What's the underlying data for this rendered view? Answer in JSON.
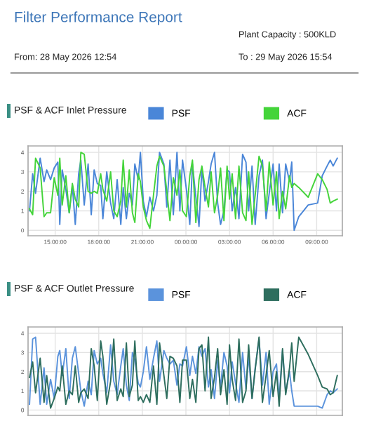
{
  "chart_data": [
    {
      "type": "line",
      "title": "Filter Performance Report",
      "annotations": [
        "Plant Capacity : 500KLD",
        "From: 28 May 2026 12:54",
        "To : 29 May 2026 15:54"
      ],
      "legend_title": "PSF & ACF Inlet Pressure",
      "legend": "top",
      "grid": true,
      "marker": "none",
      "line_style": "solid",
      "xlim": [
        "2026-05-28T13:08",
        "2026-05-29T10:46"
      ],
      "ylim": [
        -0.28,
        4.33
      ],
      "yticks": [
        0,
        1,
        2,
        3,
        4
      ],
      "xticks": [
        {
          "value": "2026-05-28T15:00",
          "label": "15:00:00"
        },
        {
          "value": "2026-05-28T18:00",
          "label": "18:00:00"
        },
        {
          "value": "2026-05-28T21:00",
          "label": "21:00:00"
        },
        {
          "value": "2026-05-29T00:00",
          "label": "00:00:00"
        },
        {
          "value": "2026-05-29T03:00",
          "label": "03:00:00"
        },
        {
          "value": "2026-05-29T06:00",
          "label": "06:00:00"
        },
        {
          "value": "2026-05-29T09:00",
          "label": "09:00:00"
        }
      ],
      "x": [
        "2026-05-28T13:14",
        "2026-05-28T13:27",
        "2026-05-28T13:39",
        "2026-05-28T13:58",
        "2026-05-28T14:14",
        "2026-05-28T14:25",
        "2026-05-28T14:41",
        "2026-05-28T14:56",
        "2026-05-28T15:11",
        "2026-05-28T15:19",
        "2026-05-28T15:29",
        "2026-05-28T15:44",
        "2026-05-28T15:58",
        "2026-05-28T16:11",
        "2026-05-28T16:23",
        "2026-05-28T16:37",
        "2026-05-28T16:46",
        "2026-05-28T17:00",
        "2026-05-28T17:16",
        "2026-05-28T17:29",
        "2026-05-28T17:41",
        "2026-05-28T17:54",
        "2026-05-28T18:08",
        "2026-05-28T18:17",
        "2026-05-28T18:33",
        "2026-05-28T18:49",
        "2026-05-28T19:02",
        "2026-05-28T19:16",
        "2026-05-28T19:31",
        "2026-05-28T19:41",
        "2026-05-28T19:54",
        "2026-05-28T20:06",
        "2026-05-28T20:19",
        "2026-05-28T20:29",
        "2026-05-28T20:43",
        "2026-05-28T20:52",
        "2026-05-28T21:04",
        "2026-05-28T21:17",
        "2026-05-28T21:31",
        "2026-05-28T21:46",
        "2026-05-28T22:00",
        "2026-05-28T22:11",
        "2026-05-28T22:29",
        "2026-05-28T22:41",
        "2026-05-28T22:54",
        "2026-05-28T23:08",
        "2026-05-28T23:23",
        "2026-05-28T23:35",
        "2026-05-28T23:46",
        "2026-05-29T00:02",
        "2026-05-29T00:16",
        "2026-05-29T00:27",
        "2026-05-29T00:41",
        "2026-05-29T00:54",
        "2026-05-29T01:06",
        "2026-05-29T01:19",
        "2026-05-29T01:33",
        "2026-05-29T01:44",
        "2026-05-29T01:58",
        "2026-05-29T02:11",
        "2026-05-29T02:23",
        "2026-05-29T02:37",
        "2026-05-29T02:50",
        "2026-05-29T03:00",
        "2026-05-29T03:11",
        "2026-05-29T03:25",
        "2026-05-29T03:39",
        "2026-05-29T03:54",
        "2026-05-29T04:08",
        "2026-05-29T04:19",
        "2026-05-29T04:33",
        "2026-05-29T04:46",
        "2026-05-29T05:02",
        "2026-05-29T05:16",
        "2026-05-29T05:31",
        "2026-05-29T05:44",
        "2026-05-29T06:00",
        "2026-05-29T06:14",
        "2026-05-29T06:25",
        "2026-05-29T06:39",
        "2026-05-29T06:52",
        "2026-05-29T07:08",
        "2026-05-29T07:17",
        "2026-05-29T07:27",
        "2026-05-29T07:46",
        "2026-05-29T08:25",
        "2026-05-29T09:04",
        "2026-05-29T09:23",
        "2026-05-29T09:43",
        "2026-05-29T09:56",
        "2026-05-29T10:08",
        "2026-05-29T10:25"
      ],
      "series": [
        {
          "name": "PSF",
          "color": "#4a86d8",
          "values": [
            1.0,
            2.9,
            1.9,
            3.7,
            2.5,
            3.1,
            2.6,
            3.2,
            3.5,
            0.3,
            3.1,
            2.1,
            0.9,
            2.3,
            0.3,
            2.9,
            3.6,
            1.3,
            3.4,
            0.8,
            3.1,
            2.4,
            2.3,
            0.6,
            3.0,
            1.4,
            0.6,
            2.6,
            0.3,
            2.2,
            0.6,
            1.9,
            1.3,
            3.4,
            2.6,
            4.0,
            1.5,
            0.7,
            1.7,
            1.0,
            1.8,
            4.0,
            3.4,
            1.2,
            3.6,
            0.8,
            4.0,
            1.0,
            3.6,
            2.1,
            0.3,
            3.4,
            1.7,
            0.2,
            3.2,
            1.5,
            2.5,
            3.4,
            4.0,
            1.4,
            0.3,
            1.0,
            3.1,
            3.0,
            1.0,
            2.2,
            0.6,
            3.9,
            3.5,
            1.0,
            3.3,
            0.3,
            2.8,
            3.6,
            0.6,
            1.9,
            3.4,
            1.0,
            3.4,
            0.9,
            3.4,
            2.5,
            3.5,
            0.0,
            0.7,
            1.3,
            1.4,
            2.8,
            3.3,
            3.6,
            3.3,
            3.7
          ]
        },
        {
          "name": "ACF",
          "color": "#44d43a",
          "values": [
            1.1,
            0.8,
            3.7,
            3.2,
            0.7,
            0.9,
            0.9,
            2.7,
            1.8,
            3.7,
            1.3,
            2.8,
            0.9,
            2.4,
            1.6,
            1.2,
            4.0,
            3.9,
            2.0,
            1.9,
            2.0,
            1.9,
            2.9,
            2.1,
            1.5,
            3.0,
            1.0,
            0.7,
            1.5,
            3.6,
            1.2,
            3.1,
            0.9,
            0.4,
            2.9,
            2.5,
            1.2,
            0.5,
            0.1,
            1.8,
            3.3,
            3.8,
            3.3,
            2.0,
            0.5,
            2.7,
            1.8,
            3.1,
            1.0,
            0.7,
            2.8,
            3.6,
            0.4,
            2.6,
            3.3,
            2.2,
            1.2,
            3.0,
            0.9,
            1.8,
            3.2,
            0.5,
            3.3,
            1.6,
            2.9,
            0.6,
            3.3,
            0.9,
            0.5,
            3.0,
            0.3,
            1.8,
            3.8,
            3.3,
            1.0,
            3.5,
            1.3,
            3.0,
            0.6,
            2.0,
            1.1,
            2.8,
            2.2,
            2.4,
            2.2,
            1.7,
            2.9,
            2.6,
            2.1,
            1.4,
            1.5,
            1.6
          ]
        }
      ]
    },
    {
      "type": "line",
      "legend_title": "PSF & ACF Outlet Pressure",
      "legend": "top",
      "grid": true,
      "marker": "none",
      "line_style": "solid",
      "tick_labels": "y",
      "xlim": [
        "2026-05-28T13:08",
        "2026-05-29T10:46"
      ],
      "ylim": [
        -0.28,
        4.33
      ],
      "yticks": [
        0,
        1,
        2,
        3,
        4
      ],
      "xticks": [
        {
          "value": "2026-05-28T15:00",
          "label": null
        },
        {
          "value": "2026-05-28T18:00",
          "label": null
        },
        {
          "value": "2026-05-28T21:00",
          "label": null
        },
        {
          "value": "2026-05-29T00:00",
          "label": null
        },
        {
          "value": "2026-05-29T03:00",
          "label": null
        },
        {
          "value": "2026-05-29T06:00",
          "label": null
        },
        {
          "value": "2026-05-29T09:00",
          "label": null
        }
      ],
      "x": [
        "2026-05-28T13:14",
        "2026-05-28T13:27",
        "2026-05-28T13:39",
        "2026-05-28T13:58",
        "2026-05-28T14:14",
        "2026-05-28T14:25",
        "2026-05-28T14:41",
        "2026-05-28T14:56",
        "2026-05-28T15:11",
        "2026-05-28T15:19",
        "2026-05-28T15:29",
        "2026-05-28T15:44",
        "2026-05-28T15:58",
        "2026-05-28T16:11",
        "2026-05-28T16:23",
        "2026-05-28T16:37",
        "2026-05-28T16:46",
        "2026-05-28T17:00",
        "2026-05-28T17:16",
        "2026-05-28T17:29",
        "2026-05-28T17:41",
        "2026-05-28T17:54",
        "2026-05-28T18:08",
        "2026-05-28T18:17",
        "2026-05-28T18:33",
        "2026-05-28T18:49",
        "2026-05-28T19:02",
        "2026-05-28T19:16",
        "2026-05-28T19:31",
        "2026-05-28T19:41",
        "2026-05-28T19:54",
        "2026-05-28T20:06",
        "2026-05-28T20:19",
        "2026-05-28T20:29",
        "2026-05-28T20:43",
        "2026-05-28T20:52",
        "2026-05-28T21:04",
        "2026-05-28T21:17",
        "2026-05-28T21:31",
        "2026-05-28T21:46",
        "2026-05-28T22:00",
        "2026-05-28T22:11",
        "2026-05-28T22:29",
        "2026-05-28T22:41",
        "2026-05-28T22:54",
        "2026-05-28T23:08",
        "2026-05-28T23:23",
        "2026-05-28T23:35",
        "2026-05-28T23:46",
        "2026-05-29T00:02",
        "2026-05-29T00:16",
        "2026-05-29T00:27",
        "2026-05-29T00:41",
        "2026-05-29T00:54",
        "2026-05-29T01:06",
        "2026-05-29T01:19",
        "2026-05-29T01:33",
        "2026-05-29T01:44",
        "2026-05-29T01:58",
        "2026-05-29T02:11",
        "2026-05-29T02:23",
        "2026-05-29T02:37",
        "2026-05-29T02:50",
        "2026-05-29T03:00",
        "2026-05-29T03:11",
        "2026-05-29T03:25",
        "2026-05-29T03:39",
        "2026-05-29T03:54",
        "2026-05-29T04:08",
        "2026-05-29T04:19",
        "2026-05-29T04:33",
        "2026-05-29T04:46",
        "2026-05-29T05:02",
        "2026-05-29T05:16",
        "2026-05-29T05:31",
        "2026-05-29T05:44",
        "2026-05-29T06:00",
        "2026-05-29T06:14",
        "2026-05-29T06:25",
        "2026-05-29T06:39",
        "2026-05-29T06:52",
        "2026-05-29T07:08",
        "2026-05-29T07:17",
        "2026-05-29T07:27",
        "2026-05-29T07:46",
        "2026-05-29T08:25",
        "2026-05-29T09:04",
        "2026-05-29T09:23",
        "2026-05-29T09:43",
        "2026-05-29T09:56",
        "2026-05-29T10:08",
        "2026-05-29T10:25"
      ],
      "series": [
        {
          "name": "PSF",
          "color": "#5b93dc",
          "values": [
            0.3,
            3.7,
            3.8,
            0.3,
            2.2,
            0.3,
            1.6,
            0.6,
            2.8,
            3.1,
            1.8,
            3.2,
            0.6,
            2.7,
            3.3,
            1.9,
            1.0,
            0.2,
            1.5,
            0.8,
            3.1,
            2.4,
            2.7,
            1.9,
            0.9,
            3.4,
            1.5,
            0.8,
            2.3,
            3.2,
            1.3,
            0.5,
            3.0,
            2.6,
            1.4,
            1.2,
            2.0,
            3.3,
            1.6,
            2.7,
            3.6,
            1.5,
            3.1,
            2.7,
            2.4,
            2.6,
            1.3,
            2.4,
            2.3,
            3.3,
            1.8,
            2.8,
            1.9,
            3.3,
            2.8,
            3.2,
            1.2,
            2.1,
            0.6,
            2.6,
            1.2,
            3.0,
            2.3,
            0.9,
            2.5,
            1.4,
            0.4,
            3.0,
            1.1,
            2.8,
            0.6,
            2.2,
            3.7,
            1.3,
            3.0,
            0.3,
            2.0,
            2.4,
            0.6,
            3.1,
            0.9,
            2.0,
            1.0,
            0.2,
            0.2,
            0.2,
            0.2,
            0.1,
            0.8,
            1.0,
            0.9,
            1.1
          ]
        },
        {
          "name": "ACF",
          "color": "#2e6e5e",
          "values": [
            1.7,
            2.5,
            0.9,
            2.7,
            0.4,
            1.8,
            0.1,
            0.6,
            1.2,
            1.0,
            2.3,
            0.3,
            1.0,
            0.8,
            2.3,
            0.4,
            0.9,
            1.1,
            0.6,
            3.2,
            2.3,
            0.5,
            3.6,
            2.8,
            0.3,
            1.5,
            3.7,
            0.5,
            1.1,
            0.7,
            3.5,
            0.7,
            1.3,
            3.6,
            0.5,
            0.7,
            0.4,
            0.8,
            0.4,
            2.3,
            0.3,
            3.5,
            1.8,
            0.6,
            2.8,
            2.7,
            2.3,
            0.4,
            2.6,
            2.6,
            0.6,
            1.6,
            0.4,
            3.2,
            3.4,
            1.0,
            3.8,
            0.6,
            1.7,
            3.2,
            0.8,
            2.1,
            0.3,
            3.4,
            1.6,
            0.5,
            3.7,
            0.4,
            1.0,
            3.4,
            0.6,
            2.1,
            3.8,
            0.4,
            1.8,
            3.1,
            0.7,
            2.0,
            0.2,
            3.2,
            0.8,
            2.2,
            3.5,
            1.5,
            3.8,
            2.9,
            1.8,
            1.2,
            1.1,
            0.8,
            0.9,
            1.8
          ]
        }
      ]
    }
  ]
}
